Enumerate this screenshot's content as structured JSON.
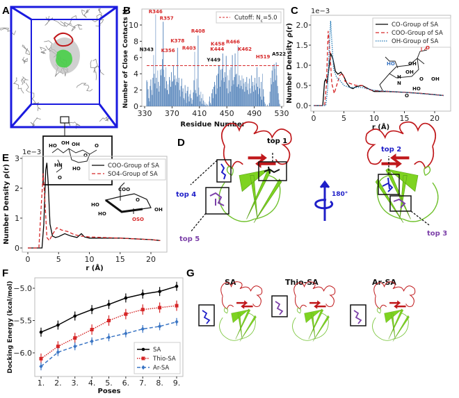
{
  "panel_labels": {
    "A": "A",
    "B": "B",
    "C": "C",
    "D": "D",
    "E": "E",
    "F": "F",
    "G": "G"
  },
  "colors": {
    "bar": "#4f7fb8",
    "cutoff": "#d62728",
    "co": "#000000",
    "coo": "#d62728",
    "oh": "#1f77b4",
    "sa": "#000000",
    "thio": "#d62728",
    "ar": "#3a75c4",
    "cube": "#1a1adf",
    "loop": "#c0181b",
    "sheet": "#7ed321",
    "top_black": "#000000",
    "top_blue": "#1f1fc8",
    "top_purple": "#7b3fa8"
  },
  "panel_a": {
    "inset_groups": [
      "HO",
      "OH",
      "OH",
      "O",
      "O",
      "HN",
      "HO",
      "O"
    ]
  },
  "chart_data": [
    {
      "id": "B",
      "type": "bar",
      "xlabel": "Residue Number",
      "ylabel": "Number of Close Contacts N",
      "ylabel_sub": "c",
      "xlim": [
        330,
        530
      ],
      "ylim": [
        0,
        11.5
      ],
      "xticks": [
        "330",
        "370",
        "410",
        "450",
        "490",
        "530"
      ],
      "yticks": [
        "0",
        "2",
        "4",
        "6",
        "8",
        "10"
      ],
      "legend": {
        "label": "Cutoff: N",
        "label_sub": "c",
        "label_tail": "=5.0",
        "position": "top-right"
      },
      "cutoff": 5.0,
      "residue_start": 333,
      "values": [
        3.2,
        3.0,
        2.1,
        1.0,
        0.6,
        2.5,
        3.3,
        2.0,
        1.4,
        3.5,
        6.3,
        4.0,
        2.8,
        11.3,
        3.5,
        2.2,
        4.4,
        3.0,
        1.8,
        2.5,
        4.5,
        3.8,
        4.6,
        5.8,
        10.4,
        4.5,
        3.6,
        2.2,
        4.8,
        3.1,
        2.0,
        2.7,
        1.5,
        3.6,
        3.2,
        2.4,
        4.2,
        3.0,
        3.1,
        5.0,
        3.3,
        3.8,
        2.6,
        3.4,
        3.0,
        7.2,
        2.9,
        3.5,
        2.0,
        1.2,
        2.5,
        3.4,
        1.8,
        2.2,
        1.0,
        0.8,
        2.6,
        1.6,
        0.4,
        1.9,
        2.4,
        1.2,
        0.6,
        1.5,
        2.0,
        1.0,
        0.3,
        0.8,
        1.7,
        3.2,
        6.7,
        2.0,
        1.6,
        3.4,
        1.2,
        8.7,
        2.3,
        1.4,
        0.6,
        1.8,
        1.0,
        0.3,
        1.5,
        0.7,
        0.2,
        0.5,
        0.1,
        0.3,
        0.0,
        0.2,
        0.0,
        0.6,
        1.2,
        0.4,
        0.2,
        1.6,
        2.1,
        1.0,
        2.4,
        3.0,
        2.6,
        1.5,
        3.8,
        2.2,
        4.0,
        5.0,
        5.0,
        2.4,
        4.5,
        3.2,
        4.6,
        6.5,
        3.5,
        3.0,
        4.2,
        3.6,
        6.2,
        2.2,
        3.8,
        1.6,
        3.2,
        4.5,
        1.8,
        4.8,
        2.5,
        6.3,
        3.2,
        2.7,
        3.6,
        6.5,
        3.9,
        4.0,
        2.4,
        7.5,
        2.7,
        3.8,
        2.2,
        3.2,
        2.5,
        3.8,
        2.1,
        3.4,
        2.8,
        1.8,
        3.0,
        2.4,
        3.6,
        2.0,
        2.8,
        1.5,
        3.4,
        2.2,
        1.6,
        3.8,
        2.5,
        3.0,
        1.8,
        2.6,
        3.5,
        2.0,
        2.8,
        4.8,
        2.4,
        1.5,
        3.6,
        2.2,
        1.2,
        3.0,
        0.8,
        4.0,
        2.1,
        1.2,
        0.5,
        0.3,
        0.0,
        0.0,
        0.2,
        0.0,
        0.0,
        0.4,
        1.8,
        3.5,
        2.7,
        4.4,
        5.0,
        3.0,
        5.2,
        4.6,
        3.2,
        5.4,
        3.8,
        2.5,
        1.6,
        0.8,
        0.3
      ],
      "annotations": [
        {
          "label": "N343",
          "residue": 343,
          "color": "black"
        },
        {
          "label": "R346",
          "residue": 346,
          "color": "red"
        },
        {
          "label": "K356",
          "residue": 356,
          "color": "red"
        },
        {
          "label": "R357",
          "residue": 357,
          "color": "red"
        },
        {
          "label": "K378",
          "residue": 378,
          "color": "red"
        },
        {
          "label": "R403",
          "residue": 403,
          "color": "red"
        },
        {
          "label": "R408",
          "residue": 408,
          "color": "red"
        },
        {
          "label": "K444",
          "residue": 444,
          "color": "red"
        },
        {
          "label": "Y449",
          "residue": 449,
          "color": "black"
        },
        {
          "label": "K458",
          "residue": 458,
          "color": "red"
        },
        {
          "label": "K462",
          "residue": 462,
          "color": "red"
        },
        {
          "label": "R466",
          "residue": 466,
          "color": "red"
        },
        {
          "label": "H519",
          "residue": 519,
          "color": "red"
        },
        {
          "label": "A522",
          "residue": 522,
          "color": "black"
        }
      ]
    },
    {
      "id": "C",
      "type": "line",
      "xlabel": "r (Å)",
      "ylabel": "Number Density ρ(r)",
      "scale_note": "1e−3",
      "xlim": [
        -1,
        22.5
      ],
      "ylim": [
        -0.05,
        2.2
      ],
      "xticks": [
        "0",
        "5",
        "10",
        "15",
        "20"
      ],
      "yticks": [
        "0.0",
        "0.5",
        "1.0",
        "1.5",
        "2.0"
      ],
      "legend_position": "top-right",
      "series": [
        {
          "name": "CO-Group of SA",
          "style": "solid",
          "points": [
            [
              0,
              0
            ],
            [
              1.5,
              0
            ],
            [
              1.8,
              0.6
            ],
            [
              2.0,
              0.65
            ],
            [
              2.2,
              0.55
            ],
            [
              2.5,
              0.9
            ],
            [
              2.8,
              1.3
            ],
            [
              3.2,
              1.15
            ],
            [
              3.6,
              0.85
            ],
            [
              4.0,
              0.78
            ],
            [
              4.5,
              0.83
            ],
            [
              5,
              0.72
            ],
            [
              5.5,
              0.55
            ],
            [
              6,
              0.45
            ],
            [
              6.5,
              0.42
            ],
            [
              7,
              0.47
            ],
            [
              8,
              0.5
            ],
            [
              9,
              0.42
            ],
            [
              10,
              0.35
            ],
            [
              12,
              0.35
            ],
            [
              15,
              0.33
            ],
            [
              18,
              0.3
            ],
            [
              21.5,
              0.25
            ]
          ]
        },
        {
          "name": "COO-Group of SA",
          "style": "dashed",
          "points": [
            [
              0,
              0
            ],
            [
              1.8,
              0
            ],
            [
              2.1,
              0.5
            ],
            [
              2.4,
              1.85
            ],
            [
              2.7,
              1.3
            ],
            [
              3.0,
              0.55
            ],
            [
              3.4,
              0.3
            ],
            [
              3.8,
              0.5
            ],
            [
              4.3,
              0.75
            ],
            [
              4.8,
              0.8
            ],
            [
              5.2,
              0.6
            ],
            [
              6,
              0.55
            ],
            [
              7,
              0.5
            ],
            [
              8,
              0.5
            ],
            [
              9,
              0.4
            ],
            [
              10,
              0.37
            ],
            [
              15,
              0.33
            ],
            [
              18,
              0.3
            ],
            [
              21.5,
              0.25
            ]
          ]
        },
        {
          "name": "OH-Group of SA",
          "style": "dotted",
          "points": [
            [
              0,
              0
            ],
            [
              2.0,
              0
            ],
            [
              2.3,
              0.4
            ],
            [
              2.6,
              1.5
            ],
            [
              2.8,
              2.1
            ],
            [
              3.0,
              1.6
            ],
            [
              3.3,
              0.9
            ],
            [
              3.8,
              0.7
            ],
            [
              4.5,
              0.6
            ],
            [
              5,
              0.5
            ],
            [
              6,
              0.45
            ],
            [
              8,
              0.45
            ],
            [
              10,
              0.38
            ],
            [
              15,
              0.33
            ],
            [
              21.5,
              0.25
            ]
          ]
        }
      ],
      "molecule_labels": [
        "HO",
        "OH",
        "OH",
        "O",
        "O",
        "OH",
        "HO",
        "O",
        "H",
        "N"
      ]
    },
    {
      "id": "E",
      "type": "line",
      "xlabel": "r (Å)",
      "ylabel": "Number Density ρ(r)",
      "scale_note": "1e−3",
      "xlim": [
        -1,
        22.5
      ],
      "ylim": [
        -0.1,
        3.1
      ],
      "xticks": [
        "0",
        "5",
        "10",
        "15",
        "20"
      ],
      "yticks": [
        "0",
        "1",
        "2",
        "3"
      ],
      "legend_position": "top-right",
      "series": [
        {
          "name": "COO-Group of SA",
          "style": "solid",
          "points": [
            [
              0,
              0
            ],
            [
              2.3,
              0
            ],
            [
              2.6,
              0.8
            ],
            [
              2.9,
              2.6
            ],
            [
              3.1,
              2.85
            ],
            [
              3.3,
              2.2
            ],
            [
              3.6,
              0.8
            ],
            [
              4,
              0.4
            ],
            [
              4.5,
              0.35
            ],
            [
              5,
              0.38
            ],
            [
              6,
              0.48
            ],
            [
              7,
              0.4
            ],
            [
              8,
              0.35
            ],
            [
              8.7,
              0.48
            ],
            [
              9.2,
              0.37
            ],
            [
              10,
              0.33
            ],
            [
              15,
              0.33
            ],
            [
              20,
              0.28
            ],
            [
              21.5,
              0.25
            ]
          ]
        },
        {
          "name": "SO4-Group of SA",
          "style": "dashed",
          "points": [
            [
              0,
              0
            ],
            [
              1.8,
              0
            ],
            [
              2.2,
              1.5
            ],
            [
              2.5,
              2.5
            ],
            [
              2.8,
              1.5
            ],
            [
              3.1,
              0.35
            ],
            [
              3.5,
              0.25
            ],
            [
              4,
              0.45
            ],
            [
              4.7,
              0.68
            ],
            [
              5.5,
              0.6
            ],
            [
              6.5,
              0.55
            ],
            [
              7.5,
              0.45
            ],
            [
              8.5,
              0.4
            ],
            [
              10,
              0.37
            ],
            [
              15,
              0.33
            ],
            [
              20,
              0.28
            ],
            [
              21.5,
              0.25
            ]
          ]
        }
      ],
      "molecule_labels": [
        "COO",
        "HO",
        "O",
        "HO",
        "OH",
        "OSO"
      ]
    },
    {
      "id": "F",
      "type": "line",
      "xlabel": "Poses",
      "ylabel": "Docking Energy (kcal/mol)",
      "categories": [
        "1.",
        "2.",
        "3.",
        "4.",
        "5.",
        "6.",
        "7.",
        "8.",
        "9."
      ],
      "ylim": [
        -6.35,
        -4.85
      ],
      "yticks": [
        {
          "v": -5.0,
          "t": "−5.0"
        },
        {
          "v": -5.5,
          "t": "−5.5"
        },
        {
          "v": -6.0,
          "t": "−6.0"
        }
      ],
      "legend_position": "bottom-right",
      "series": [
        {
          "name": "SA",
          "style": "solid",
          "marker": "plus",
          "values": [
            -5.68,
            -5.57,
            -5.43,
            -5.33,
            -5.25,
            -5.15,
            -5.09,
            -5.05,
            -4.97
          ],
          "error": 0.07
        },
        {
          "name": "Thio-SA",
          "style": "dotted",
          "marker": "square",
          "values": [
            -6.09,
            -5.9,
            -5.77,
            -5.64,
            -5.5,
            -5.4,
            -5.33,
            -5.3,
            -5.27
          ],
          "error": 0.08
        },
        {
          "name": "Ar-SA",
          "style": "dashed",
          "marker": "diamond",
          "values": [
            -6.21,
            -5.99,
            -5.9,
            -5.82,
            -5.76,
            -5.7,
            -5.63,
            -5.59,
            -5.52
          ],
          "error": 0.06
        }
      ]
    }
  ],
  "panel_d": {
    "rotation": "180°",
    "tops": [
      "top 1",
      "top 2",
      "top 3",
      "top 4",
      "top 5"
    ]
  },
  "panel_g": {
    "titles": [
      "SA",
      "Thio-SA",
      "Ar-SA"
    ]
  }
}
